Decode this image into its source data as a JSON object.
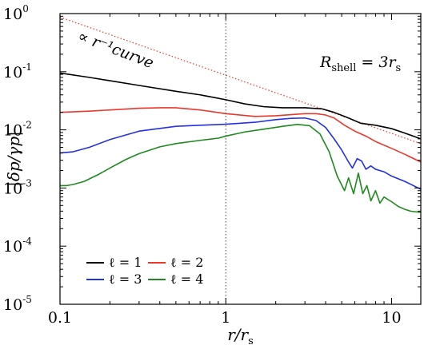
{
  "chart_data": {
    "type": "line",
    "xscale": "log",
    "yscale": "log",
    "xlim": [
      0.1,
      15
    ],
    "ylim": [
      1e-05,
      1
    ],
    "xlabel": "r/r_s",
    "ylabel": "|δp/γp|",
    "grid": false,
    "legend_position": "bottom-left",
    "x_ticks": [
      {
        "value": 0.1,
        "label": "0.1"
      },
      {
        "value": 1,
        "label": "1"
      },
      {
        "value": 10,
        "label": "10"
      }
    ],
    "y_ticks": [
      {
        "value": 1,
        "base": "10",
        "exp": "0"
      },
      {
        "value": 0.1,
        "base": "10",
        "exp": "-1"
      },
      {
        "value": 0.01,
        "base": "10",
        "exp": "-2"
      },
      {
        "value": 0.001,
        "base": "10",
        "exp": "-3"
      },
      {
        "value": 0.0001,
        "base": "10",
        "exp": "-4"
      },
      {
        "value": 1e-05,
        "base": "10",
        "exp": "-5"
      }
    ],
    "annotations": {
      "shell_label": "R_shell = 3r_s",
      "power_law_label": "∝ r⁻¹curve"
    },
    "vline_x": 1,
    "reference_line": {
      "name": "∝ r⁻¹",
      "color": "#e8382c",
      "style": "dotted",
      "x": [
        0.1,
        15
      ],
      "y": [
        0.87,
        0.0058
      ]
    },
    "series": [
      {
        "name": "ℓ = 1",
        "color": "#000000",
        "x": [
          0.1,
          0.15,
          0.2,
          0.3,
          0.5,
          0.7,
          1.0,
          1.3,
          1.7,
          2.2,
          3.0,
          3.8,
          4.5,
          5.5,
          6.5,
          8.0,
          10,
          12,
          15
        ],
        "y": [
          0.095,
          0.08,
          0.07,
          0.058,
          0.046,
          0.04,
          0.033,
          0.028,
          0.025,
          0.024,
          0.024,
          0.023,
          0.02,
          0.016,
          0.013,
          0.012,
          0.0105,
          0.0088,
          0.007
        ]
      },
      {
        "name": "ℓ = 2",
        "color": "#e8382c",
        "x": [
          0.1,
          0.15,
          0.2,
          0.3,
          0.4,
          0.5,
          0.7,
          1.0,
          1.5,
          2.0,
          3.0,
          3.5,
          4.0,
          4.5,
          5.2,
          6.0,
          7.0,
          8.0,
          10,
          12,
          15
        ],
        "y": [
          0.02,
          0.021,
          0.022,
          0.0235,
          0.024,
          0.024,
          0.022,
          0.019,
          0.017,
          0.0175,
          0.019,
          0.019,
          0.018,
          0.016,
          0.012,
          0.0095,
          0.0078,
          0.0063,
          0.0048,
          0.0038,
          0.0028
        ]
      },
      {
        "name": "ℓ = 3",
        "color": "#2230e8",
        "x": [
          0.1,
          0.12,
          0.15,
          0.2,
          0.3,
          0.5,
          0.7,
          1.0,
          1.5,
          2.0,
          2.5,
          3.0,
          3.5,
          4.0,
          4.5,
          5.0,
          5.5,
          5.8,
          6.2,
          6.6,
          7.0,
          7.5,
          8.0,
          9.0,
          10,
          12,
          15
        ],
        "y": [
          0.004,
          0.0042,
          0.005,
          0.0068,
          0.0095,
          0.0115,
          0.012,
          0.0125,
          0.0135,
          0.015,
          0.0158,
          0.016,
          0.0145,
          0.011,
          0.007,
          0.0045,
          0.0028,
          0.0022,
          0.0032,
          0.0029,
          0.0021,
          0.0024,
          0.0021,
          0.0019,
          0.0016,
          0.0013,
          0.00095
        ]
      },
      {
        "name": "ℓ = 4",
        "color": "#1f8a1f",
        "x": [
          0.1,
          0.11,
          0.12,
          0.14,
          0.17,
          0.2,
          0.25,
          0.3,
          0.4,
          0.5,
          0.7,
          0.9,
          1.0,
          1.3,
          1.7,
          2.2,
          2.7,
          3.2,
          3.7,
          4.2,
          4.7,
          5.2,
          5.5,
          5.9,
          6.3,
          6.7,
          7.1,
          7.5,
          8.0,
          8.5,
          9.0,
          10,
          11,
          12,
          13,
          15
        ],
        "y": [
          0.0011,
          0.0011,
          0.00115,
          0.0013,
          0.0017,
          0.0022,
          0.0031,
          0.0039,
          0.0051,
          0.0058,
          0.0066,
          0.0072,
          0.0078,
          0.0092,
          0.0103,
          0.0115,
          0.0124,
          0.0118,
          0.0085,
          0.0042,
          0.0016,
          0.0009,
          0.0015,
          0.0008,
          0.0018,
          0.0008,
          0.0011,
          0.0006,
          0.0009,
          0.00055,
          0.0007,
          0.00058,
          0.00048,
          0.00043,
          0.0004,
          0.00038
        ]
      }
    ]
  }
}
